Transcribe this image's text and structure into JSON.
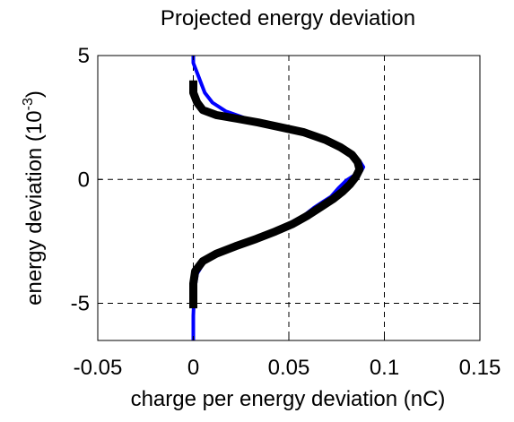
{
  "chart_data": {
    "type": "line",
    "title": "Projected energy deviation",
    "xlabel": "charge per energy deviation (nC)",
    "ylabel": "energy deviation (10",
    "ylabel_exponent": "-3",
    "ylabel_suffix": ")",
    "xlim": [
      -0.05,
      0.15
    ],
    "ylim": [
      -6.5,
      5
    ],
    "xticks": [
      -0.05,
      0,
      0.05,
      0.1,
      0.15
    ],
    "xtick_labels": [
      "-0.05",
      "0",
      "0.05",
      "0.1",
      "0.15"
    ],
    "yticks": [
      -5,
      0,
      5
    ],
    "ytick_labels": [
      "-5",
      "0",
      "5"
    ],
    "grid": true,
    "series": [
      {
        "color": "#0000ff",
        "line_width": "thin",
        "points": [
          [
            0,
            -6.5
          ],
          [
            0,
            -5.5
          ],
          [
            0.0005,
            -4.5
          ],
          [
            0.002,
            -3.8
          ],
          [
            0.006,
            -3.3
          ],
          [
            0.012,
            -3.0
          ],
          [
            0.02,
            -2.8
          ],
          [
            0.03,
            -2.55
          ],
          [
            0.038,
            -2.3
          ],
          [
            0.045,
            -2.0
          ],
          [
            0.052,
            -1.7
          ],
          [
            0.058,
            -1.45
          ],
          [
            0.063,
            -1.15
          ],
          [
            0.068,
            -0.9
          ],
          [
            0.072,
            -0.7
          ],
          [
            0.076,
            -0.35
          ],
          [
            0.08,
            -0.05
          ],
          [
            0.084,
            0.15
          ],
          [
            0.088,
            0.35
          ],
          [
            0.089,
            0.5
          ],
          [
            0.087,
            0.75
          ],
          [
            0.082,
            1.0
          ],
          [
            0.075,
            1.3
          ],
          [
            0.066,
            1.65
          ],
          [
            0.055,
            1.95
          ],
          [
            0.042,
            2.2
          ],
          [
            0.028,
            2.45
          ],
          [
            0.017,
            2.75
          ],
          [
            0.01,
            3.1
          ],
          [
            0.006,
            3.5
          ],
          [
            0.004,
            3.9
          ],
          [
            0.002,
            4.3
          ],
          [
            0,
            4.7
          ],
          [
            0,
            5.0
          ]
        ]
      },
      {
        "color": "#000000",
        "line_width": "thick",
        "points": [
          [
            0,
            -5.2
          ],
          [
            0,
            -4.2
          ],
          [
            0.001,
            -3.7
          ],
          [
            0.005,
            -3.3
          ],
          [
            0.012,
            -3.0
          ],
          [
            0.022,
            -2.7
          ],
          [
            0.033,
            -2.4
          ],
          [
            0.043,
            -2.1
          ],
          [
            0.052,
            -1.8
          ],
          [
            0.06,
            -1.45
          ],
          [
            0.067,
            -1.1
          ],
          [
            0.073,
            -0.8
          ],
          [
            0.078,
            -0.5
          ],
          [
            0.082,
            -0.2
          ],
          [
            0.085,
            0.1
          ],
          [
            0.087,
            0.4
          ],
          [
            0.086,
            0.7
          ],
          [
            0.083,
            1.0
          ],
          [
            0.077,
            1.3
          ],
          [
            0.069,
            1.6
          ],
          [
            0.058,
            1.9
          ],
          [
            0.046,
            2.1
          ],
          [
            0.034,
            2.3
          ],
          [
            0.023,
            2.45
          ],
          [
            0.012,
            2.6
          ],
          [
            0.005,
            2.8
          ],
          [
            0.002,
            3.1
          ],
          [
            0,
            3.5
          ],
          [
            0,
            4.0
          ]
        ]
      }
    ]
  }
}
